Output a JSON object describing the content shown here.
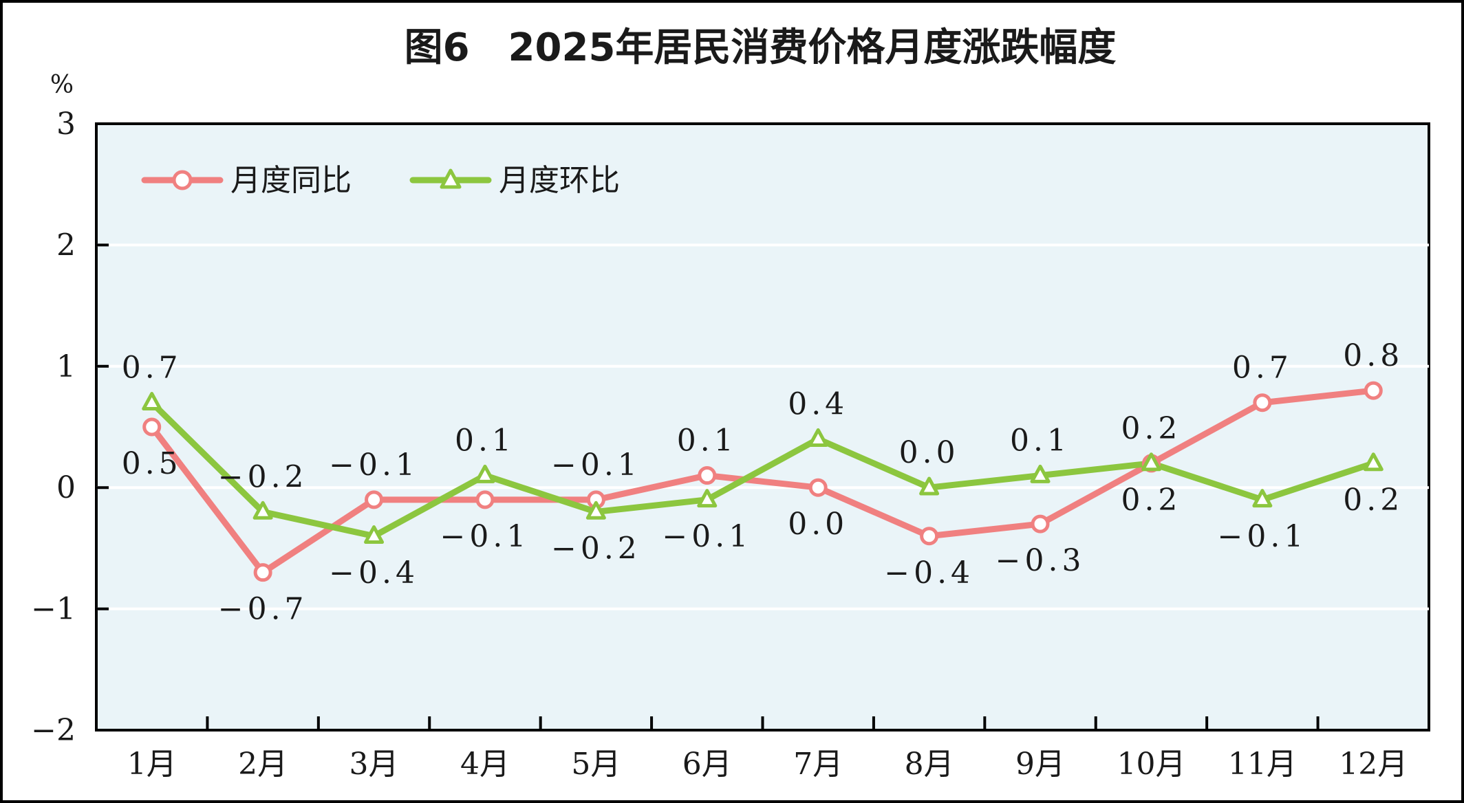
{
  "chart_data": {
    "type": "line",
    "title": "图6　2025年居民消费价格月度涨跌幅度",
    "ylabel": "%",
    "xlabel": "",
    "categories": [
      "1月",
      "2月",
      "3月",
      "4月",
      "5月",
      "6月",
      "7月",
      "8月",
      "9月",
      "10月",
      "11月",
      "12月"
    ],
    "ylim": [
      -2,
      3
    ],
    "yticks": [
      3,
      2,
      1,
      0,
      -1,
      -2
    ],
    "grid": true,
    "legend": "top-left",
    "series": [
      {
        "name": "月度同比",
        "color": "#f08080",
        "marker": "circle",
        "values": [
          0.5,
          -0.7,
          -0.1,
          -0.1,
          -0.1,
          0.1,
          0.0,
          -0.4,
          -0.3,
          0.2,
          0.7,
          0.8
        ],
        "labels": [
          "0.5",
          "-0.7",
          "-0.1",
          "-0.1",
          "-0.1",
          "0.1",
          "0.0",
          "-0.4",
          "-0.3",
          "0.2",
          "0.7",
          "0.8"
        ]
      },
      {
        "name": "月度环比",
        "color": "#8cc63f",
        "marker": "triangle",
        "values": [
          0.7,
          -0.2,
          -0.4,
          0.1,
          -0.2,
          -0.1,
          0.4,
          0.0,
          0.1,
          0.2,
          -0.1,
          0.2
        ],
        "labels": [
          "0.7",
          "-0.2",
          "-0.4",
          "0.1",
          "-0.2",
          "-0.1",
          "0.4",
          "0.0",
          "0.1",
          "0.2",
          "-0.1",
          "0.2"
        ]
      }
    ],
    "plot_background": "#eaf4f8",
    "frame_color": "#000000"
  }
}
